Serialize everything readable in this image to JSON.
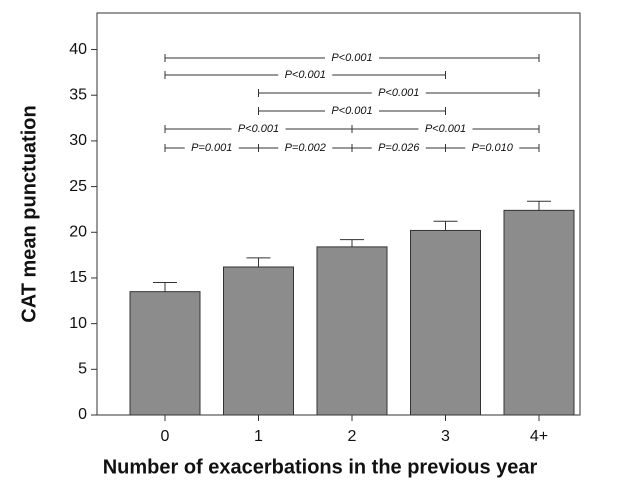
{
  "chart_data": {
    "type": "bar",
    "x_label": "Number of exacerbations in the previous year",
    "y_label": "CAT mean punctuation",
    "categories": [
      "0",
      "1",
      "2",
      "3",
      "4+"
    ],
    "values": [
      13.5,
      16.2,
      18.4,
      20.2,
      22.4
    ],
    "errors": [
      1.0,
      1.0,
      0.8,
      1.0,
      1.0
    ],
    "color": "#8c8c8c",
    "ylim": [
      0,
      44
    ],
    "yticks": [
      0,
      5,
      10,
      15,
      20,
      25,
      30,
      35,
      40
    ],
    "annotations": [
      {
        "from": 0,
        "to": 4,
        "label": "P<0.001"
      },
      {
        "from": 0,
        "to": 3,
        "label": "P<0.001"
      },
      {
        "from": 1,
        "to": 4,
        "label": "P<0.001"
      },
      {
        "from": 1,
        "to": 3,
        "label": "P<0.001"
      },
      {
        "from": 0,
        "to": 2,
        "label": "P<0.001"
      },
      {
        "from": 2,
        "to": 4,
        "label": "P<0.001"
      },
      {
        "from": 0,
        "to": 1,
        "label": "P=0.001"
      },
      {
        "from": 1,
        "to": 2,
        "label": "P=0.002"
      },
      {
        "from": 2,
        "to": 3,
        "label": "P=0.026"
      },
      {
        "from": 3,
        "to": 4,
        "label": "P=0.010"
      }
    ]
  }
}
